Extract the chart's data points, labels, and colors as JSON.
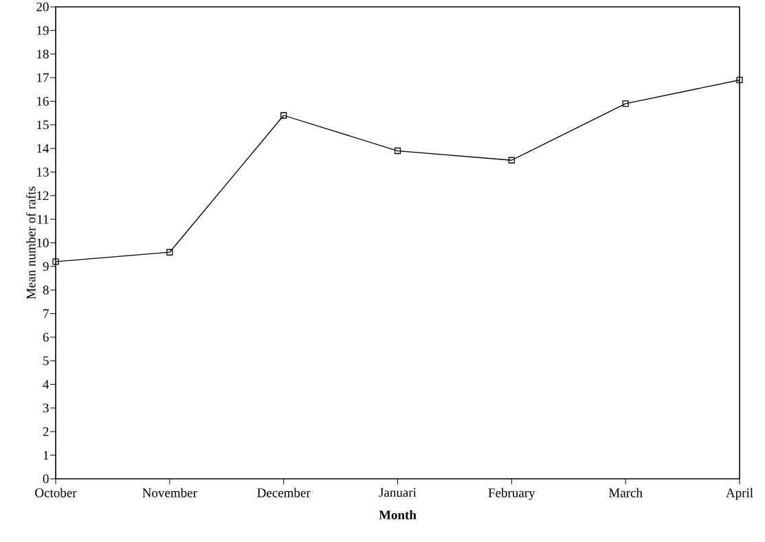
{
  "chart_data": {
    "type": "line",
    "xlabel": "Month",
    "ylabel": "Mean number of rafts",
    "categories": [
      "October",
      "November",
      "December",
      "Januari",
      "February",
      "March",
      "April"
    ],
    "values": [
      9.2,
      9.6,
      15.4,
      13.9,
      13.5,
      15.9,
      16.9
    ],
    "color": "#000000",
    "marker": "square",
    "line_style": "solid",
    "ylim": [
      0,
      20
    ],
    "yticks": [
      0,
      1,
      2,
      3,
      4,
      5,
      6,
      7,
      8,
      9,
      10,
      11,
      12,
      13,
      14,
      15,
      16,
      17,
      18,
      19,
      20
    ],
    "grid": false
  }
}
